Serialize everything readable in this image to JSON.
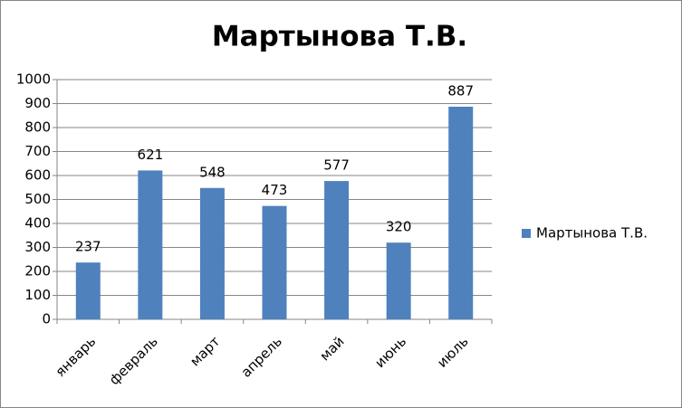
{
  "chart_data": {
    "type": "bar",
    "title": "Мартынова Т.В.",
    "categories": [
      "январь",
      "февраль",
      "март",
      "апрель",
      "май",
      "июнь",
      "июль"
    ],
    "series": [
      {
        "name": "Мартынова Т.В.",
        "color": "#4f81bd",
        "values": [
          237,
          621,
          548,
          473,
          577,
          320,
          887
        ]
      }
    ],
    "ylim": [
      0,
      1000
    ],
    "yticks": [
      0,
      100,
      200,
      300,
      400,
      500,
      600,
      700,
      800,
      900,
      1000
    ],
    "grid": true,
    "legend": "right"
  }
}
